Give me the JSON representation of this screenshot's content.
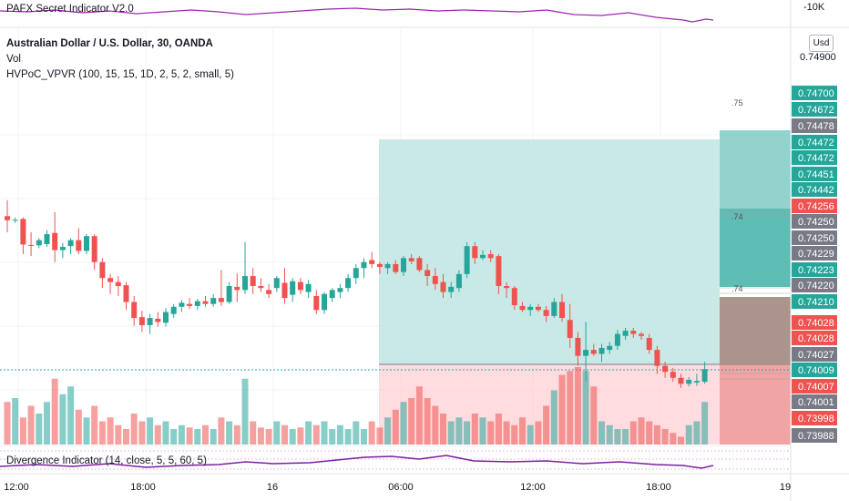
{
  "top_panel": {
    "title": "PAFX Secret Indicator V2.0",
    "scale_label": "-10K"
  },
  "legend": {
    "symbol": "Australian Dollar / U.S. Dollar, 30, OANDA",
    "vol": "Vol",
    "hvpoc": "HVPoC_VPVR (100, 15, 15, 1D, 2, 5, 2, small, 5)"
  },
  "currency_button": "Usd",
  "bottom_panel": {
    "title": "Divergence Indicator (14, close, 5, 5, 60, 5)"
  },
  "colors": {
    "up": "#26a69a",
    "down": "#ef5350",
    "profit_zone": "#b2dfdb",
    "loss_zone": "#ffcdd2",
    "oscillator": "#9c27b0"
  },
  "price_axis": [
    {
      "label": "0.74900",
      "y": 62,
      "color": "none"
    },
    {
      "label": "0.74700",
      "y": 102,
      "color": "#26a69a"
    },
    {
      "label": "0.74672",
      "y": 120,
      "color": "#26a69a"
    },
    {
      "label": "0.74478",
      "y": 138,
      "color": "#787b86"
    },
    {
      "label": "0.74472",
      "y": 156,
      "color": "#26a69a"
    },
    {
      "label": "0.74472",
      "y": 173,
      "color": "#26a69a"
    },
    {
      "label": "0.74451",
      "y": 191,
      "color": "#26a69a"
    },
    {
      "label": "0.74442",
      "y": 208,
      "color": "#26a69a"
    },
    {
      "label": "0.74256",
      "y": 226,
      "color": "#ef5350"
    },
    {
      "label": "0.74250",
      "y": 243,
      "color": "#787b86"
    },
    {
      "label": "0.74250",
      "y": 261,
      "color": "#787b86"
    },
    {
      "label": "0.74229",
      "y": 278,
      "color": "#787b86"
    },
    {
      "label": "0.74223",
      "y": 296,
      "color": "#26a69a"
    },
    {
      "label": "0.74220",
      "y": 313,
      "color": "#787b86"
    },
    {
      "label": "0.74210",
      "y": 331,
      "color": "#26a69a"
    },
    {
      "label": "0.74028",
      "y": 354,
      "color": "#ef5350"
    },
    {
      "label": "0.74028",
      "y": 371,
      "color": "#ef5350"
    },
    {
      "label": "0.74027",
      "y": 389,
      "color": "#787b86"
    },
    {
      "label": "0.74009",
      "y": 406,
      "color": "#26a69a"
    },
    {
      "label": "0.74007",
      "y": 424,
      "color": "#ef5350"
    },
    {
      "label": "0.74001",
      "y": 441,
      "color": "#787b86"
    },
    {
      "label": "0.73998",
      "y": 459,
      "color": "#ef5350"
    },
    {
      "label": "0.73988",
      "y": 478,
      "color": "#787b86"
    }
  ],
  "time_axis": [
    {
      "label": "12:00",
      "x": 18
    },
    {
      "label": "18:00",
      "x": 157
    },
    {
      "label": "16",
      "x": 299
    },
    {
      "label": "06:00",
      "x": 440
    },
    {
      "label": "12:00",
      "x": 585
    },
    {
      "label": "18:00",
      "x": 723
    },
    {
      "label": "19",
      "x": 862
    }
  ],
  "zone_labels": [
    {
      "label": ".75",
      "x": 803,
      "y": 116
    },
    {
      "label": ".74",
      "x": 803,
      "y": 241
    },
    {
      "label": ".74",
      "x": 803,
      "y": 320
    }
  ],
  "chart_data": {
    "type": "candlestick",
    "closes_from_open_deltas": [
      [
        "o",
        0.7441,
        "c",
        0.7443
      ],
      [
        "o",
        0.7443,
        "c",
        0.7443
      ],
      [
        "o",
        0.7443,
        "c",
        0.7437
      ],
      [
        "o",
        0.7436,
        "c",
        0.7432
      ]
    ],
    "candles": [
      {
        "o": 0.74395,
        "h": 0.74435,
        "l": 0.74355,
        "c": 0.74385
      },
      {
        "o": 0.74385,
        "h": 0.74392,
        "l": 0.74378,
        "c": 0.74386
      },
      {
        "o": 0.74388,
        "h": 0.74392,
        "l": 0.743,
        "c": 0.74324
      },
      {
        "o": 0.74323,
        "h": 0.74355,
        "l": 0.74295,
        "c": 0.74322
      },
      {
        "o": 0.74322,
        "h": 0.7434,
        "l": 0.74315,
        "c": 0.74335
      },
      {
        "o": 0.74325,
        "h": 0.7436,
        "l": 0.74318,
        "c": 0.7435
      },
      {
        "o": 0.74353,
        "h": 0.74405,
        "l": 0.7428,
        "c": 0.7431
      },
      {
        "o": 0.7431,
        "h": 0.74328,
        "l": 0.7429,
        "c": 0.74318
      },
      {
        "o": 0.7432,
        "h": 0.7434,
        "l": 0.743,
        "c": 0.74335
      },
      {
        "o": 0.74335,
        "h": 0.74365,
        "l": 0.743,
        "c": 0.74308
      },
      {
        "o": 0.74308,
        "h": 0.7435,
        "l": 0.743,
        "c": 0.74345
      },
      {
        "o": 0.74345,
        "h": 0.7435,
        "l": 0.7426,
        "c": 0.7428
      },
      {
        "o": 0.7428,
        "h": 0.7429,
        "l": 0.74215,
        "c": 0.7424
      },
      {
        "o": 0.7424,
        "h": 0.7425,
        "l": 0.742,
        "c": 0.7423
      },
      {
        "o": 0.7423,
        "h": 0.74245,
        "l": 0.74195,
        "c": 0.7422
      },
      {
        "o": 0.74222,
        "h": 0.7423,
        "l": 0.7416,
        "c": 0.7418
      },
      {
        "o": 0.7418,
        "h": 0.74195,
        "l": 0.7412,
        "c": 0.7414
      },
      {
        "o": 0.74142,
        "h": 0.74158,
        "l": 0.74105,
        "c": 0.74122
      },
      {
        "o": 0.74122,
        "h": 0.7415,
        "l": 0.741,
        "c": 0.7414
      },
      {
        "o": 0.74138,
        "h": 0.74155,
        "l": 0.74118,
        "c": 0.7413
      },
      {
        "o": 0.74128,
        "h": 0.74165,
        "l": 0.74118,
        "c": 0.74155
      },
      {
        "o": 0.7415,
        "h": 0.74175,
        "l": 0.7414,
        "c": 0.74168
      },
      {
        "o": 0.74168,
        "h": 0.74185,
        "l": 0.74155,
        "c": 0.74178
      },
      {
        "o": 0.74175,
        "h": 0.7419,
        "l": 0.74162,
        "c": 0.7417
      },
      {
        "o": 0.7417,
        "h": 0.74188,
        "l": 0.7416,
        "c": 0.74182
      },
      {
        "o": 0.74182,
        "h": 0.74195,
        "l": 0.74168,
        "c": 0.74175
      },
      {
        "o": 0.74175,
        "h": 0.742,
        "l": 0.74168,
        "c": 0.7419
      },
      {
        "o": 0.7419,
        "h": 0.7426,
        "l": 0.7417,
        "c": 0.7418
      },
      {
        "o": 0.7418,
        "h": 0.7423,
        "l": 0.74175,
        "c": 0.7422
      },
      {
        "o": 0.74218,
        "h": 0.74252,
        "l": 0.7418,
        "c": 0.7421
      },
      {
        "o": 0.7421,
        "h": 0.7433,
        "l": 0.742,
        "c": 0.74245
      },
      {
        "o": 0.74245,
        "h": 0.74265,
        "l": 0.742,
        "c": 0.7422
      },
      {
        "o": 0.7422,
        "h": 0.7424,
        "l": 0.74205,
        "c": 0.74215
      },
      {
        "o": 0.7421,
        "h": 0.74225,
        "l": 0.7419,
        "c": 0.742
      },
      {
        "o": 0.74215,
        "h": 0.74245,
        "l": 0.74205,
        "c": 0.7424
      },
      {
        "o": 0.74228,
        "h": 0.74265,
        "l": 0.74175,
        "c": 0.7419
      },
      {
        "o": 0.74198,
        "h": 0.7424,
        "l": 0.7418,
        "c": 0.74232
      },
      {
        "o": 0.7423,
        "h": 0.7424,
        "l": 0.742,
        "c": 0.7421
      },
      {
        "o": 0.74205,
        "h": 0.74235,
        "l": 0.7419,
        "c": 0.74225
      },
      {
        "o": 0.74195,
        "h": 0.7421,
        "l": 0.7415,
        "c": 0.7416
      },
      {
        "o": 0.7416,
        "h": 0.74205,
        "l": 0.7415,
        "c": 0.742
      },
      {
        "o": 0.7419,
        "h": 0.74215,
        "l": 0.7418,
        "c": 0.7421
      },
      {
        "o": 0.74205,
        "h": 0.74225,
        "l": 0.7419,
        "c": 0.74215
      },
      {
        "o": 0.74215,
        "h": 0.7425,
        "l": 0.74205,
        "c": 0.7424
      },
      {
        "o": 0.7424,
        "h": 0.74275,
        "l": 0.74225,
        "c": 0.74265
      },
      {
        "o": 0.74265,
        "h": 0.7429,
        "l": 0.7424,
        "c": 0.7428
      },
      {
        "o": 0.74285,
        "h": 0.74305,
        "l": 0.74265,
        "c": 0.74275
      },
      {
        "o": 0.74275,
        "h": 0.7428,
        "l": 0.7425,
        "c": 0.74268
      },
      {
        "o": 0.74265,
        "h": 0.7428,
        "l": 0.7425,
        "c": 0.74275
      },
      {
        "o": 0.74275,
        "h": 0.74285,
        "l": 0.7425,
        "c": 0.74255
      },
      {
        "o": 0.74255,
        "h": 0.74295,
        "l": 0.74245,
        "c": 0.7429
      },
      {
        "o": 0.7429,
        "h": 0.743,
        "l": 0.74275,
        "c": 0.74282
      },
      {
        "o": 0.7429,
        "h": 0.74295,
        "l": 0.74255,
        "c": 0.7426
      },
      {
        "o": 0.7426,
        "h": 0.74275,
        "l": 0.7422,
        "c": 0.74245
      },
      {
        "o": 0.74245,
        "h": 0.74265,
        "l": 0.7421,
        "c": 0.74225
      },
      {
        "o": 0.7423,
        "h": 0.7425,
        "l": 0.7419,
        "c": 0.74205
      },
      {
        "o": 0.74205,
        "h": 0.7423,
        "l": 0.7419,
        "c": 0.74218
      },
      {
        "o": 0.74215,
        "h": 0.7426,
        "l": 0.74205,
        "c": 0.7425
      },
      {
        "o": 0.7425,
        "h": 0.7433,
        "l": 0.7424,
        "c": 0.7432
      },
      {
        "o": 0.7432,
        "h": 0.7433,
        "l": 0.74275,
        "c": 0.7429
      },
      {
        "o": 0.7429,
        "h": 0.7431,
        "l": 0.74285,
        "c": 0.74298
      },
      {
        "o": 0.743,
        "h": 0.7431,
        "l": 0.7428,
        "c": 0.7429
      },
      {
        "o": 0.74295,
        "h": 0.743,
        "l": 0.742,
        "c": 0.7422
      },
      {
        "o": 0.7422,
        "h": 0.7423,
        "l": 0.7419,
        "c": 0.74215
      },
      {
        "o": 0.74215,
        "h": 0.7422,
        "l": 0.7416,
        "c": 0.74172
      },
      {
        "o": 0.7417,
        "h": 0.7418,
        "l": 0.74155,
        "c": 0.7416
      },
      {
        "o": 0.7416,
        "h": 0.74175,
        "l": 0.74145,
        "c": 0.74168
      },
      {
        "o": 0.74168,
        "h": 0.74175,
        "l": 0.74155,
        "c": 0.7416
      },
      {
        "o": 0.7416,
        "h": 0.7417,
        "l": 0.7413,
        "c": 0.74145
      },
      {
        "o": 0.74145,
        "h": 0.7419,
        "l": 0.7414,
        "c": 0.7418
      },
      {
        "o": 0.7418,
        "h": 0.742,
        "l": 0.7413,
        "c": 0.7414
      },
      {
        "o": 0.74135,
        "h": 0.74175,
        "l": 0.74065,
        "c": 0.7409
      },
      {
        "o": 0.7409,
        "h": 0.74105,
        "l": 0.7402,
        "c": 0.74045
      },
      {
        "o": 0.74045,
        "h": 0.7413,
        "l": 0.7398,
        "c": 0.7406
      },
      {
        "o": 0.7406,
        "h": 0.74075,
        "l": 0.74045,
        "c": 0.7405
      },
      {
        "o": 0.7405,
        "h": 0.74075,
        "l": 0.7403,
        "c": 0.74065
      },
      {
        "o": 0.7406,
        "h": 0.7408,
        "l": 0.7405,
        "c": 0.7407
      },
      {
        "o": 0.7407,
        "h": 0.7411,
        "l": 0.7406,
        "c": 0.741
      },
      {
        "o": 0.74095,
        "h": 0.74115,
        "l": 0.74085,
        "c": 0.74108
      },
      {
        "o": 0.74108,
        "h": 0.74115,
        "l": 0.7409,
        "c": 0.741
      },
      {
        "o": 0.741,
        "h": 0.74105,
        "l": 0.74085,
        "c": 0.74095
      },
      {
        "o": 0.7409,
        "h": 0.741,
        "l": 0.7405,
        "c": 0.7406
      },
      {
        "o": 0.7406,
        "h": 0.7407,
        "l": 0.74,
        "c": 0.7402
      },
      {
        "o": 0.7402,
        "h": 0.7403,
        "l": 0.7399,
        "c": 0.74005
      },
      {
        "o": 0.74005,
        "h": 0.74015,
        "l": 0.7398,
        "c": 0.7399
      },
      {
        "o": 0.7399,
        "h": 0.74,
        "l": 0.73965,
        "c": 0.73975
      },
      {
        "o": 0.73975,
        "h": 0.73992,
        "l": 0.73968,
        "c": 0.73985
      },
      {
        "o": 0.73978,
        "h": 0.74,
        "l": 0.7397,
        "c": 0.73982
      },
      {
        "o": 0.7398,
        "h": 0.7403,
        "l": 0.73975,
        "c": 0.74012
      }
    ]
  }
}
